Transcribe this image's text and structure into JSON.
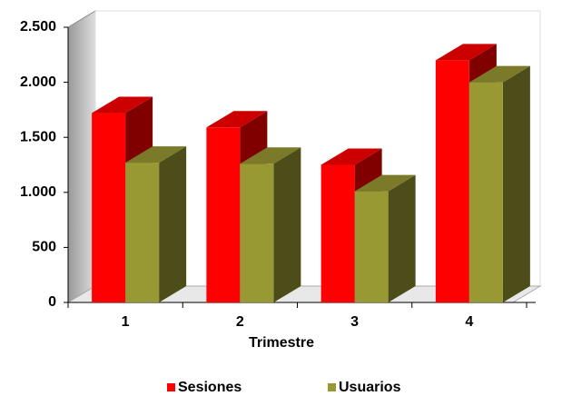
{
  "chart_data": {
    "type": "bar3d",
    "x_label": "Trimestre",
    "categories": [
      "1",
      "2",
      "3",
      "4"
    ],
    "series": [
      {
        "name": "Sesiones",
        "color": "#ff0000",
        "values": [
          1720,
          1590,
          1250,
          2200
        ]
      },
      {
        "name": "Usuarios",
        "color": "#999933",
        "values": [
          1270,
          1260,
          1010,
          2000
        ]
      }
    ],
    "ylim": [
      0,
      2500
    ],
    "yticks": [
      0,
      500,
      {
        "value": 1000,
        "label": "1.000"
      },
      {
        "value": 1500,
        "label": "1.500"
      },
      {
        "value": 2000,
        "label": "2.000"
      },
      {
        "value": 2500,
        "label": "2.500"
      }
    ],
    "legend": "bottom"
  }
}
